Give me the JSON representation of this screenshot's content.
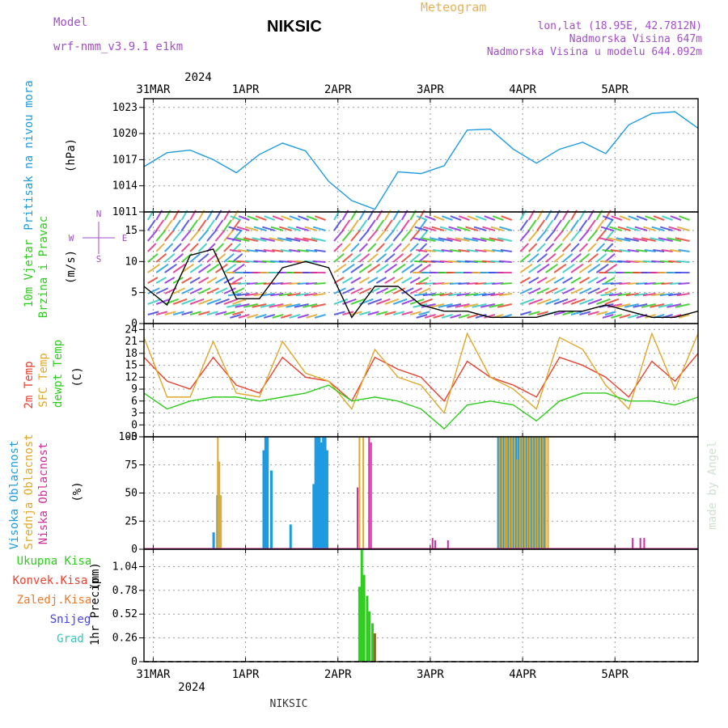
{
  "header": {
    "model_label": "Model",
    "model_name": "wrf-nmm_v3.9.1 e1km",
    "title": "NIKSIC",
    "meteogram": "Meteogram",
    "location": "lon,lat (18.95E, 42.7812N)",
    "elevation": "Nadmorska Visina 647m",
    "model_elevation": "Nadmorska Visina u modelu 644.092m",
    "footer_station": "NIKSIC",
    "credit": "made by Angel"
  },
  "colors": {
    "pressure": "#1e9be0",
    "temp2m": "#e8412f",
    "sfc": "#e0a82a",
    "dewpt": "#2ecc1c",
    "high_cloud": "#1e9be0",
    "mid_cloud": "#e0a82a",
    "low_cloud": "#d02da0",
    "total_precip": "#2ecc1c",
    "conv": "#e8412f",
    "frozen": "#e87a2a",
    "snow": "#4444e0",
    "grad": "#2ec9c0",
    "header_purple": "#a24fc8",
    "header_orange": "#e6b15a"
  },
  "chart_data": [
    {
      "type": "line",
      "name": "pressure",
      "ylabels": [
        "Pritisak na nivou mora",
        "(hPa)"
      ],
      "ylim": [
        1011,
        1024
      ],
      "yticks": [
        1011,
        1014,
        1017,
        1020,
        1023
      ],
      "x_top_year": "2024",
      "x_top_labels": [
        "31MAR",
        "1APR",
        "2APR",
        "3APR",
        "4APR",
        "5APR"
      ],
      "x_hours": [
        0,
        6,
        12,
        18,
        24,
        30,
        36,
        42,
        48,
        54,
        60,
        66,
        72,
        78,
        84,
        90,
        96,
        102,
        108,
        114,
        120,
        126,
        132,
        138,
        144
      ],
      "series": [
        {
          "values": [
            1016.2,
            1017.8,
            1018.1,
            1017.0,
            1015.5,
            1017.6,
            1018.9,
            1018.0,
            1014.5,
            1012.3,
            1011.3,
            1015.6,
            1015.4,
            1016.3,
            1020.4,
            1020.5,
            1018.2,
            1016.6,
            1018.2,
            1019.0,
            1017.7,
            1021.0,
            1022.3,
            1022.5,
            1020.6
          ]
        }
      ]
    },
    {
      "type": "line",
      "name": "wind",
      "ylabels": [
        "10m Vjetar",
        "Brzina i Pravac",
        "(m/s)"
      ],
      "compass": [
        "N",
        "E",
        "S",
        "W"
      ],
      "ylim": [
        0,
        18
      ],
      "yticks": [
        0,
        5,
        10,
        15
      ],
      "x_hours": [
        0,
        6,
        12,
        18,
        24,
        30,
        36,
        42,
        48,
        54,
        60,
        66,
        72,
        78,
        84,
        90,
        96,
        102,
        108,
        114,
        120,
        126,
        132,
        138,
        144
      ],
      "series": [
        {
          "name": "speed",
          "values": [
            6,
            3,
            11,
            12,
            4,
            4,
            9,
            10,
            9,
            1,
            6,
            6,
            3,
            2,
            2,
            1,
            1,
            1,
            2,
            2,
            3,
            2,
            1,
            1,
            2
          ]
        }
      ]
    },
    {
      "type": "line",
      "name": "temperature",
      "ylabels": [
        "2m Temp",
        "SFC Temp",
        "dewpt Temp",
        "(C)"
      ],
      "ylim": [
        -3,
        25.5
      ],
      "yticks": [
        -3,
        0,
        3,
        6,
        9,
        12,
        15,
        18,
        21,
        24
      ],
      "x_hours": [
        0,
        6,
        12,
        18,
        24,
        30,
        36,
        42,
        48,
        54,
        60,
        66,
        72,
        78,
        84,
        90,
        96,
        102,
        108,
        114,
        120,
        126,
        132,
        138,
        144
      ],
      "series": [
        {
          "name": "2m",
          "values": [
            17,
            11,
            9,
            17,
            10,
            8,
            17,
            12,
            11,
            6,
            17,
            14,
            12,
            6,
            16,
            12,
            10,
            7,
            17,
            15,
            12,
            7,
            16,
            11,
            18
          ]
        },
        {
          "name": "sfc",
          "values": [
            22,
            7,
            7,
            21,
            8,
            7,
            21,
            13,
            11,
            4,
            19,
            12,
            10,
            3,
            23,
            12,
            9,
            4,
            22,
            19,
            10,
            4,
            23,
            9,
            23
          ]
        },
        {
          "name": "dewpt",
          "values": [
            8,
            4,
            6,
            7,
            7,
            6,
            7,
            8,
            10,
            6,
            7,
            6,
            4,
            -1,
            5,
            6,
            5,
            1,
            6,
            8,
            8,
            6,
            6,
            5,
            7
          ]
        }
      ]
    },
    {
      "type": "bar",
      "name": "cloud",
      "ylabels": [
        "Visoka Oblacnost",
        "Srednja Oblacnost",
        "Niska Oblacnost",
        "(%)"
      ],
      "ylim": [
        0,
        100
      ],
      "yticks": [
        0,
        25,
        50,
        75,
        100
      ],
      "series": [
        {
          "name": "high",
          "hours": [
            18,
            19,
            31,
            31.5,
            32,
            33,
            38,
            44,
            44.5,
            45,
            45.5,
            46,
            46.5,
            47,
            47.5,
            92,
            92.7,
            93.4,
            94,
            94.6,
            95.2,
            96,
            96.6,
            97.3,
            98,
            98.6,
            99.4,
            100,
            100.6,
            101.3,
            102,
            102.7,
            103.3,
            104
          ],
          "values": [
            15,
            48,
            88,
            100,
            100,
            70,
            22,
            58,
            100,
            100,
            100,
            95,
            100,
            100,
            88,
            100,
            100,
            100,
            100,
            100,
            100,
            100,
            100,
            100,
            100,
            100,
            100,
            100,
            100,
            100,
            100,
            100,
            100,
            100
          ]
        },
        {
          "name": "mid",
          "hours": [
            19.2,
            19.6,
            20,
            56,
            57,
            92.4,
            93.1,
            93.8,
            94.3,
            95,
            95.6,
            96.3,
            97,
            97.7,
            98.3,
            99,
            99.7,
            100.3,
            101,
            101.7,
            102.3,
            103,
            103.7,
            104.4,
            105
          ],
          "values": [
            100,
            78,
            48,
            100,
            100,
            100,
            100,
            100,
            100,
            100,
            100,
            100,
            80,
            100,
            100,
            100,
            100,
            100,
            100,
            100,
            100,
            100,
            100,
            100,
            100
          ]
        },
        {
          "name": "low",
          "hours": [
            55.5,
            58.5,
            59,
            75,
            75.7,
            79,
            127,
            129,
            130
          ],
          "values": [
            55,
            100,
            95,
            10,
            8,
            8,
            10,
            10,
            10
          ]
        }
      ]
    },
    {
      "type": "bar",
      "name": "precip",
      "ylabels": [
        "1hr Precip",
        "(mm)"
      ],
      "legend": [
        "Ukupna Kisa",
        "Konvek.Kisa",
        "Zaledj.Kisa",
        "Snijeg",
        "Grad"
      ],
      "ylim": [
        0,
        1.23
      ],
      "yticks": [
        "0",
        "0.26",
        "0.52",
        "0.78",
        "1.04"
      ],
      "ytick_values": [
        0,
        0.26,
        0.52,
        0.78,
        1.04
      ],
      "x_bottom_labels": [
        "31MAR",
        "1APR",
        "2APR",
        "3APR",
        "4APR",
        "5APR"
      ],
      "x_bottom_year": "2024",
      "series": [
        {
          "name": "total",
          "hours": [
            56,
            56.6,
            57.2,
            58,
            58.6,
            59.4,
            60
          ],
          "values": [
            0.82,
            1.22,
            0.95,
            0.72,
            0.55,
            0.42,
            0.31
          ]
        }
      ]
    }
  ]
}
